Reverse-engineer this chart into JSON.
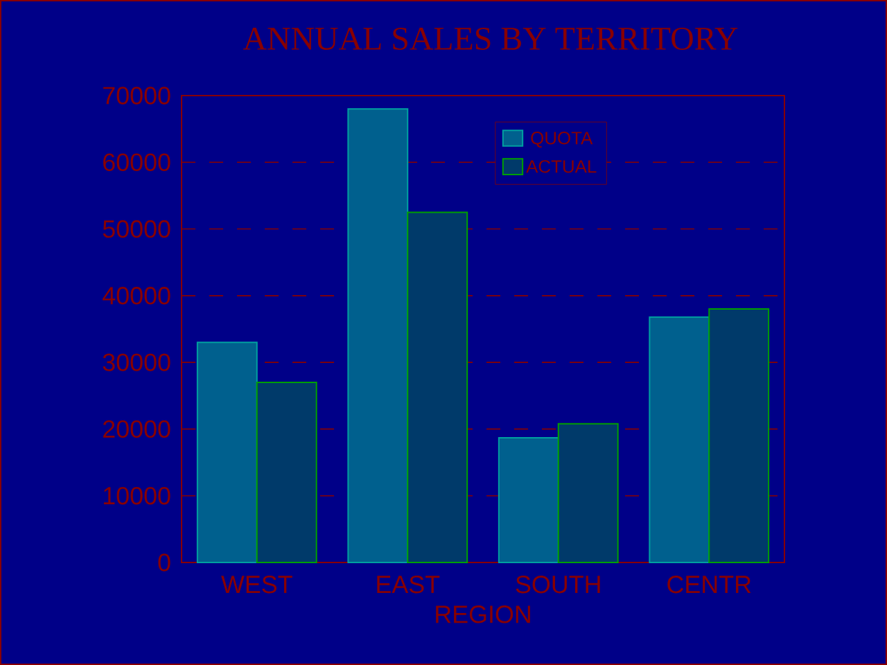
{
  "chart_data": {
    "type": "bar",
    "title": "ANNUAL SALES BY TERRITORY",
    "xlabel": "REGION",
    "categories": [
      "WEST",
      "EAST",
      "SOUTH",
      "CENTR"
    ],
    "series": [
      {
        "name": "QUOTA",
        "color": "#00608e",
        "values": [
          33000,
          68000,
          18700,
          36800
        ]
      },
      {
        "name": "ACTUAL",
        "color": "#003a6a",
        "values": [
          27000,
          52500,
          20800,
          38000
        ]
      }
    ],
    "ylim": [
      0,
      70000
    ],
    "yticks": [
      0,
      10000,
      20000,
      30000,
      40000,
      50000,
      60000,
      70000
    ],
    "grid": "y",
    "legend": "top"
  }
}
